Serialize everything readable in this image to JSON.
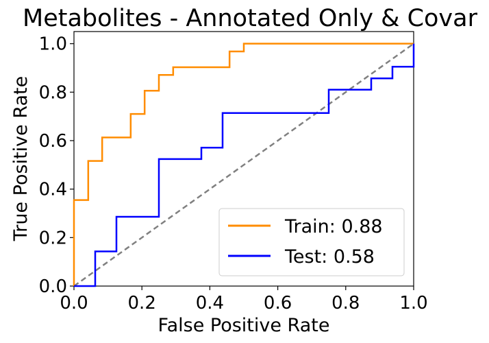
{
  "chart_data": {
    "type": "line",
    "title": "Metabolites - Annotated Only & Covar",
    "xlabel": "False Positive Rate",
    "ylabel": "True Positive Rate",
    "xlim": [
      0.0,
      1.0
    ],
    "ylim": [
      0.0,
      1.05
    ],
    "xticks": [
      "0.0",
      "0.2",
      "0.4",
      "0.6",
      "0.8",
      "1.0"
    ],
    "yticks": [
      "0.0",
      "0.2",
      "0.4",
      "0.6",
      "0.8",
      "1.0"
    ],
    "grid": false,
    "legend_position": "lower-right",
    "series": [
      {
        "name": "Train: 0.88",
        "color": "#ff8c00",
        "points": [
          [
            0.0,
            0.0
          ],
          [
            0.0,
            0.355
          ],
          [
            0.042,
            0.355
          ],
          [
            0.042,
            0.516
          ],
          [
            0.083,
            0.516
          ],
          [
            0.083,
            0.613
          ],
          [
            0.167,
            0.613
          ],
          [
            0.167,
            0.71
          ],
          [
            0.208,
            0.71
          ],
          [
            0.208,
            0.806
          ],
          [
            0.25,
            0.806
          ],
          [
            0.25,
            0.871
          ],
          [
            0.292,
            0.871
          ],
          [
            0.292,
            0.903
          ],
          [
            0.458,
            0.903
          ],
          [
            0.458,
            0.968
          ],
          [
            0.5,
            0.968
          ],
          [
            0.5,
            1.0
          ],
          [
            1.0,
            1.0
          ]
        ]
      },
      {
        "name": "Test: 0.58",
        "color": "#0000ff",
        "points": [
          [
            0.0,
            0.0
          ],
          [
            0.0625,
            0.0
          ],
          [
            0.0625,
            0.143
          ],
          [
            0.125,
            0.143
          ],
          [
            0.125,
            0.286
          ],
          [
            0.25,
            0.286
          ],
          [
            0.25,
            0.524
          ],
          [
            0.375,
            0.524
          ],
          [
            0.375,
            0.571
          ],
          [
            0.4375,
            0.571
          ],
          [
            0.4375,
            0.714
          ],
          [
            0.75,
            0.714
          ],
          [
            0.75,
            0.81
          ],
          [
            0.875,
            0.81
          ],
          [
            0.875,
            0.857
          ],
          [
            0.9375,
            0.857
          ],
          [
            0.9375,
            0.905
          ],
          [
            1.0,
            0.905
          ],
          [
            1.0,
            1.0
          ]
        ]
      },
      {
        "name": "",
        "color": "#808080",
        "dashed": true,
        "points": [
          [
            0.0,
            0.0
          ],
          [
            1.0,
            1.0
          ]
        ]
      }
    ]
  }
}
